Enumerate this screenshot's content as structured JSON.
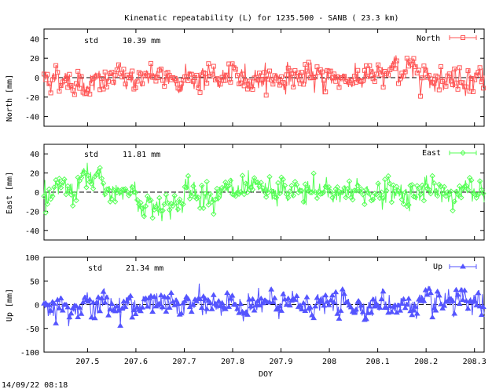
{
  "title": "Kinematic repeatability (L) for 1235.500 - SANB  ( 23.3 km)",
  "timestamp": "14/09/22 08:18",
  "chart_data": [
    {
      "type": "line",
      "name": "North",
      "ylabel": "North [mm]",
      "std_label": "std",
      "std_value": "10.39 mm",
      "color": "#ff5555",
      "marker": "square",
      "ylim": [
        -50,
        50
      ],
      "yticks": [
        -40,
        -20,
        0,
        20,
        40
      ],
      "xlim": [
        207.41,
        208.32
      ],
      "legend": "North",
      "legend_position": "top-right",
      "series_desc": "noisy scatter about 0, mostly within -30..+30 mm"
    },
    {
      "type": "line",
      "name": "East",
      "ylabel": "East [mm]",
      "std_label": "std",
      "std_value": "11.81 mm",
      "color": "#55ff55",
      "marker": "diamond",
      "ylim": [
        -50,
        50
      ],
      "yticks": [
        -40,
        -20,
        0,
        20,
        40
      ],
      "xlim": [
        207.41,
        208.32
      ],
      "legend": "East",
      "legend_position": "top-right"
    },
    {
      "type": "line",
      "name": "Up",
      "ylabel": "Up [mm]",
      "std_label": "std",
      "std_value": "21.34 mm",
      "color": "#5555ff",
      "marker": "triangle",
      "ylim": [
        -100,
        100
      ],
      "yticks": [
        -100,
        -50,
        0,
        50,
        100
      ],
      "xlim": [
        207.41,
        208.32
      ],
      "legend": "Up",
      "legend_position": "top-right",
      "xlabel": "DOY",
      "xticks": [
        "207.5",
        "207.6",
        "207.7",
        "207.8",
        "207.9",
        "208",
        "208.1",
        "208.2",
        "208.3"
      ],
      "xtick_values": [
        207.5,
        207.6,
        207.7,
        207.8,
        207.9,
        208.0,
        208.1,
        208.2,
        208.3
      ]
    }
  ]
}
